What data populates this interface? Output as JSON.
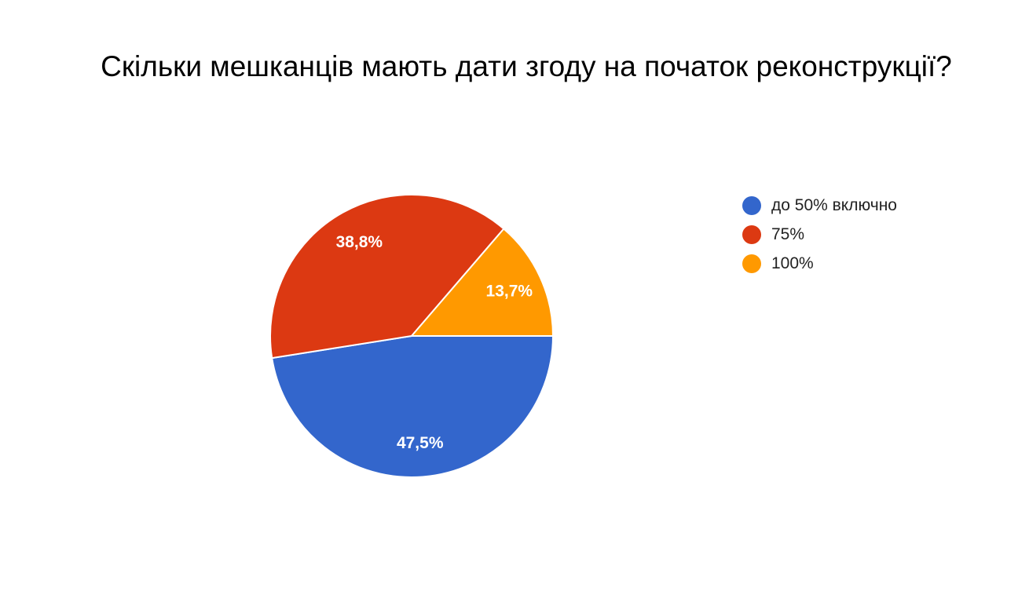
{
  "chart_data": {
    "type": "pie",
    "title": "Скільки мешканців мають дати згоду на початок реконструкції?",
    "slices": [
      {
        "label": "до 50% включно",
        "value": 47.5,
        "value_label": "47,5%",
        "color": "#3366CC"
      },
      {
        "label": "75%",
        "value": 38.8,
        "value_label": "38,8%",
        "color": "#DC3912"
      },
      {
        "label": "100%",
        "value": 13.7,
        "value_label": "13,7%",
        "color": "#FF9900"
      }
    ],
    "legend_position": "right"
  }
}
